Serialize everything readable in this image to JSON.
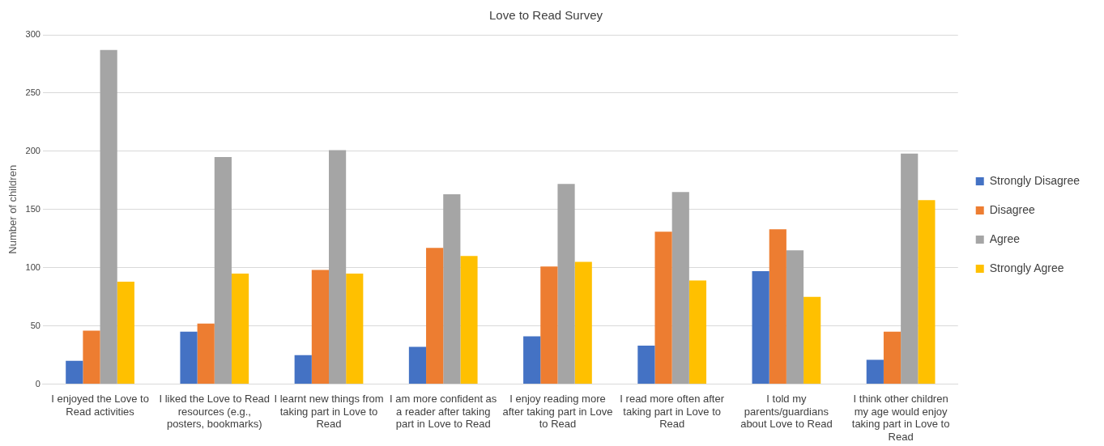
{
  "chart_data": {
    "type": "bar",
    "title": "Love to Read Survey",
    "ylabel": "Number of children",
    "categories": [
      "I enjoyed the Love to Read activities",
      "I liked the Love to Read resources (e.g., posters, bookmarks)",
      "I learnt new things from taking part in Love to Read",
      "I am more confident as a reader after taking part in Love to Read",
      "I enjoy reading more after taking part in Love to Read",
      "I read more often after taking part in Love to Read",
      "I told my parents/guardians about Love to Read",
      "I think other children my age would enjoy taking part in Love to Read"
    ],
    "series": [
      {
        "name": "Strongly Disagree",
        "color": "#4472c4",
        "values": [
          20,
          45,
          25,
          32,
          41,
          33,
          97,
          21
        ]
      },
      {
        "name": "Disagree",
        "color": "#ed7d31",
        "values": [
          46,
          52,
          98,
          117,
          101,
          131,
          133,
          45
        ]
      },
      {
        "name": "Agree",
        "color": "#a5a5a5",
        "values": [
          287,
          195,
          201,
          163,
          172,
          165,
          115,
          198
        ]
      },
      {
        "name": "Strongly Agree",
        "color": "#ffc000",
        "values": [
          88,
          95,
          95,
          110,
          105,
          89,
          75,
          158
        ]
      }
    ],
    "ylim": [
      0,
      300
    ],
    "yticks": [
      0,
      50,
      100,
      150,
      200,
      250,
      300
    ],
    "grid": "y",
    "legend": "right"
  }
}
